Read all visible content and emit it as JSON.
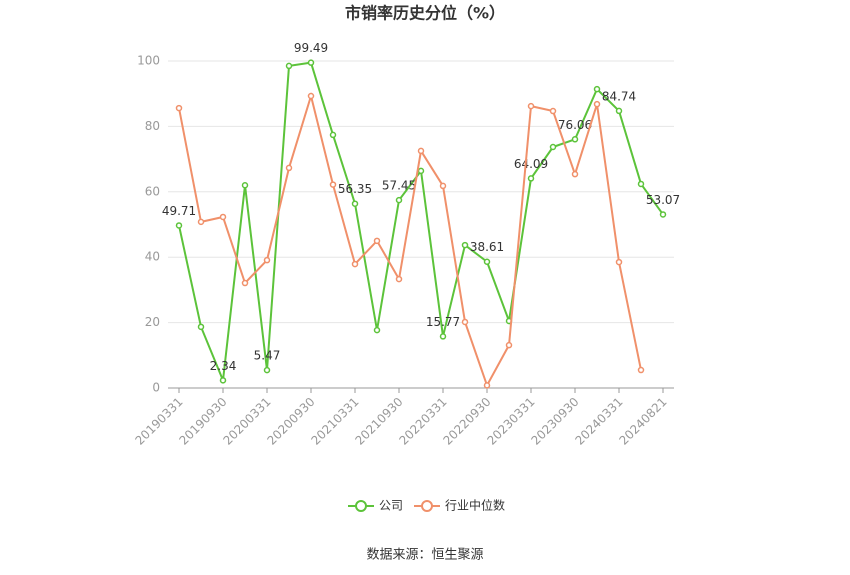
{
  "chart_data": {
    "type": "line",
    "title": "市销率历史分位（%）",
    "source": "数据来源：恒生聚源",
    "categories": [
      "20190331",
      null,
      "20190930",
      null,
      "20200331",
      null,
      "20200930",
      null,
      "20210331",
      null,
      "20210930",
      null,
      "20220331",
      null,
      "20220930",
      null,
      "20230331",
      null,
      "20230930",
      null,
      "20240331",
      null,
      "20240821"
    ],
    "series": [
      {
        "name": "公司",
        "color": "#5cc33a",
        "values": [
          49.71,
          18.7,
          2.34,
          62,
          5.47,
          98.5,
          99.49,
          77.4,
          56.35,
          17.7,
          57.45,
          66.4,
          15.77,
          43.7,
          38.61,
          20.5,
          64.09,
          73.7,
          76.06,
          91.4,
          84.74,
          62.4,
          53.07
        ],
        "value_labels": [
          "49.71",
          null,
          "2.34",
          null,
          "5.47",
          null,
          "99.49",
          null,
          "56.35",
          null,
          "57.45",
          null,
          "15.77",
          null,
          "38.61",
          null,
          "64.09",
          null,
          "76.06",
          null,
          "84.74",
          null,
          "53.07"
        ]
      },
      {
        "name": "行业中位数",
        "color": "#f0906a",
        "values": [
          85.6,
          50.8,
          52.3,
          32.1,
          39.1,
          67.3,
          89.3,
          62.2,
          37.9,
          45,
          33.3,
          72.5,
          61.8,
          20.2,
          0.8,
          13.1,
          86.2,
          84.7,
          65.4,
          86.8,
          38.5,
          5.5,
          null
        ]
      }
    ],
    "ylim": [
      0,
      100
    ],
    "yticks": [
      0,
      20,
      40,
      60,
      80,
      100
    ],
    "grid": true
  }
}
